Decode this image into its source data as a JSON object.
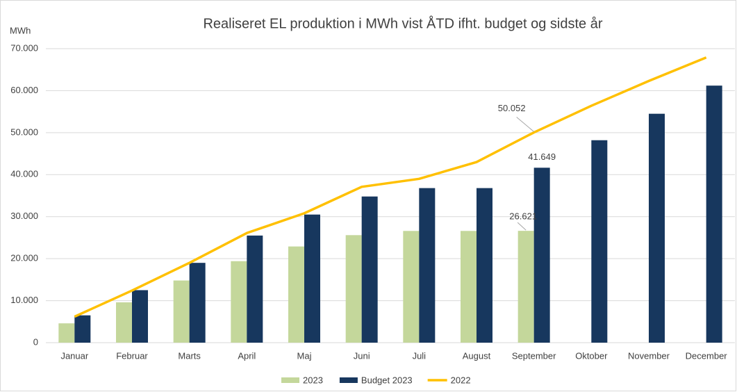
{
  "chart_data": {
    "type": "bar",
    "title": "Realiseret EL produktion i MWh vist ÅTD ifht. budget og sidste år",
    "y_label": "MWh",
    "categories": [
      "Januar",
      "Februar",
      "Marts",
      "April",
      "Maj",
      "Juni",
      "Juli",
      "August",
      "September",
      "Oktober",
      "November",
      "December"
    ],
    "series": [
      {
        "name": "2023",
        "type": "bar",
        "color": "#c4d79b",
        "values": [
          4600,
          9600,
          14800,
          19400,
          22900,
          25600,
          26600,
          26600,
          26621,
          null,
          null,
          null
        ],
        "value_labels": [
          null,
          null,
          null,
          null,
          null,
          null,
          null,
          null,
          "26.621",
          null,
          null,
          null
        ]
      },
      {
        "name": "Budget 2023",
        "type": "bar",
        "color": "#17375e",
        "values": [
          6500,
          12500,
          19000,
          25500,
          30500,
          34800,
          36800,
          36800,
          41649,
          48200,
          54500,
          61200
        ],
        "value_labels": [
          null,
          null,
          null,
          null,
          null,
          null,
          null,
          null,
          "41.649",
          null,
          null,
          null
        ]
      },
      {
        "name": "2022",
        "type": "line",
        "color": "#ffc000",
        "values": [
          6200,
          12400,
          19000,
          26100,
          30800,
          37100,
          39000,
          43000,
          50052,
          56400,
          62300,
          67900
        ],
        "value_labels": [
          null,
          null,
          null,
          null,
          null,
          null,
          null,
          null,
          "50.052",
          null,
          null,
          null
        ]
      }
    ],
    "ylim": [
      0,
      70000
    ],
    "yticks": [
      0,
      {
        "value": 10000,
        "label": "10.000"
      },
      {
        "value": 20000,
        "label": "20.000"
      },
      {
        "value": 30000,
        "label": "30.000"
      },
      {
        "value": 40000,
        "label": "40.000"
      },
      {
        "value": 50000,
        "label": "50.000"
      },
      {
        "value": 60000,
        "label": "60.000"
      },
      {
        "value": 70000,
        "label": "70.000"
      }
    ],
    "grid": true,
    "legend": "bottom"
  }
}
